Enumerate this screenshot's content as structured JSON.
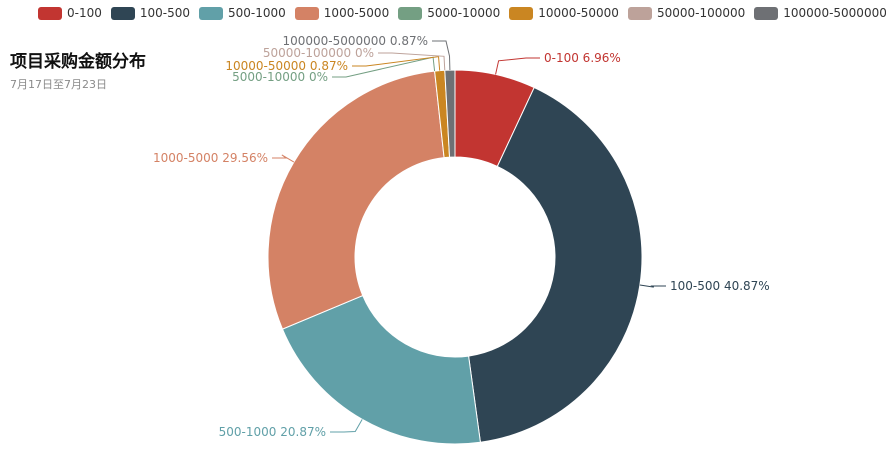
{
  "chart_data": {
    "type": "pie",
    "variant": "donut",
    "title": "项目采购金额分布",
    "subtitle": "7月17日至7月23日",
    "legend_position": "top",
    "slices": [
      {
        "name": "0-100",
        "value": 6.96,
        "label": "0-100 6.96%",
        "color": "#c23531"
      },
      {
        "name": "100-500",
        "value": 40.87,
        "label": "100-500 40.87%",
        "color": "#2f4554"
      },
      {
        "name": "500-1000",
        "value": 20.87,
        "label": "500-1000 20.87%",
        "color": "#61a0a8"
      },
      {
        "name": "1000-5000",
        "value": 29.56,
        "label": "1000-5000 29.56%",
        "color": "#d48265"
      },
      {
        "name": "5000-10000",
        "value": 0,
        "label": "5000-10000 0%",
        "color": "#749f83"
      },
      {
        "name": "10000-50000",
        "value": 0.87,
        "label": "10000-50000 0.87%",
        "color": "#ca8622"
      },
      {
        "name": "50000-100000",
        "value": 0,
        "label": "50000-100000 0%",
        "color": "#bda29a"
      },
      {
        "name": "100000-5000000",
        "value": 0.87,
        "label": "100000-5000000 0.87%",
        "color": "#6e7074"
      }
    ]
  }
}
